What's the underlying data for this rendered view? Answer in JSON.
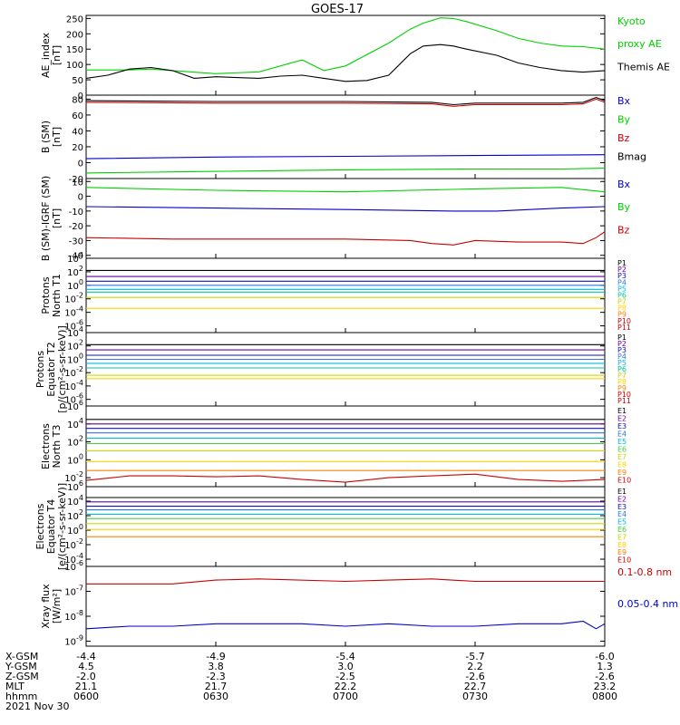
{
  "title": "GOES-17",
  "colors": {
    "black": "#000000",
    "green": "#00d000",
    "blue": "#0000c8",
    "red": "#c80000",
    "c1": "#000000",
    "c2": "#6a00a0",
    "c3": "#1010c8",
    "c4": "#2a7ae0",
    "c5": "#00b8e0",
    "c6": "#00c8a0",
    "c7": "#40d040",
    "c8": "#c8d800",
    "c9": "#ffd000",
    "c10": "#ff8000",
    "c11": "#d00000"
  },
  "panels": [
    {
      "id": "ae",
      "ylabel": [
        "AE_index",
        "[nT]"
      ],
      "scale": "linear",
      "ylim": [
        0,
        260
      ],
      "ticks": [
        "0",
        "50",
        "100",
        "150",
        "200",
        "250"
      ],
      "tick_values": [
        0,
        50,
        100,
        150,
        200,
        250
      ],
      "legend": [
        {
          "text": "Kyoto",
          "color": "green"
        },
        {
          "text": "proxy AE",
          "color": "green"
        },
        {
          "text": "Themis AE",
          "color": "black"
        }
      ]
    },
    {
      "id": "bsm",
      "ylabel": [
        "B (SM)",
        "[nT]"
      ],
      "scale": "linear",
      "ylim": [
        -20,
        85
      ],
      "ticks": [
        "-20",
        "0",
        "20",
        "40",
        "60",
        "80"
      ],
      "tick_values": [
        -20,
        0,
        20,
        40,
        60,
        80
      ],
      "legend": [
        {
          "text": "Bx",
          "color": "blue"
        },
        {
          "text": "By",
          "color": "green"
        },
        {
          "text": "Bz",
          "color": "red"
        },
        {
          "text": "Bmag",
          "color": "black"
        }
      ]
    },
    {
      "id": "bigrf",
      "ylabel": [
        "B (SM)-IGRF (SM)",
        "[nT]"
      ],
      "scale": "linear",
      "ylim": [
        -42,
        12
      ],
      "ticks": [
        "-40",
        "-30",
        "-20",
        "-10",
        "0",
        "10"
      ],
      "tick_values": [
        -40,
        -30,
        -20,
        -10,
        0,
        10
      ],
      "legend": [
        {
          "text": "Bx",
          "color": "blue"
        },
        {
          "text": "By",
          "color": "green"
        },
        {
          "text": "Bz",
          "color": "red"
        }
      ]
    },
    {
      "id": "pn",
      "ylabel": [
        "Protons",
        "North T1"
      ],
      "scale": "log",
      "ylim": [
        -7,
        4
      ],
      "ticks": [
        "10^4",
        "10^2",
        "10^0",
        "10^-2",
        "10^-4",
        "10^-6"
      ],
      "tick_values": [
        4,
        2,
        0,
        -2,
        -4,
        -6
      ],
      "legend": [
        {
          "text": "P1",
          "color": "c1"
        },
        {
          "text": "P2",
          "color": "c2"
        },
        {
          "text": "P3",
          "color": "c3"
        },
        {
          "text": "P4",
          "color": "c4"
        },
        {
          "text": "P5",
          "color": "c5"
        },
        {
          "text": "P6",
          "color": "c6"
        },
        {
          "text": "P7",
          "color": "c8"
        },
        {
          "text": "P8",
          "color": "c9"
        },
        {
          "text": "P9",
          "color": "c10"
        },
        {
          "text": "P10",
          "color": "c11"
        },
        {
          "text": "P11",
          "color": "c11"
        }
      ]
    },
    {
      "id": "pe",
      "ylabel": [
        "Protons",
        "Equator T2",
        "[p/(cm²-s-sr-keV)]"
      ],
      "scale": "log",
      "ylim": [
        -7,
        4
      ],
      "ticks": [
        "10^4",
        "10^2",
        "10^0",
        "10^-2",
        "10^-4",
        "10^-6"
      ],
      "tick_values": [
        4,
        2,
        0,
        -2,
        -4,
        -6
      ],
      "legend": [
        {
          "text": "P1",
          "color": "c1"
        },
        {
          "text": "P2",
          "color": "c2"
        },
        {
          "text": "P3",
          "color": "c3"
        },
        {
          "text": "P4",
          "color": "c4"
        },
        {
          "text": "P5",
          "color": "c5"
        },
        {
          "text": "P6",
          "color": "c6"
        },
        {
          "text": "P7",
          "color": "c8"
        },
        {
          "text": "P8",
          "color": "c9"
        },
        {
          "text": "P9",
          "color": "c10"
        },
        {
          "text": "P10",
          "color": "c11"
        },
        {
          "text": "P11",
          "color": "c11"
        }
      ]
    },
    {
      "id": "en",
      "ylabel": [
        "Electrons",
        "North T3"
      ],
      "scale": "log",
      "ylim": [
        -3,
        6
      ],
      "ticks": [
        "10^6",
        "10^4",
        "10^2",
        "10^0",
        "10^-2"
      ],
      "tick_values": [
        6,
        4,
        2,
        0,
        -2
      ],
      "legend": [
        {
          "text": "E1",
          "color": "c1"
        },
        {
          "text": "E2",
          "color": "c2"
        },
        {
          "text": "E3",
          "color": "c3"
        },
        {
          "text": "E4",
          "color": "c4"
        },
        {
          "text": "E5",
          "color": "c5"
        },
        {
          "text": "E6",
          "color": "c7"
        },
        {
          "text": "E7",
          "color": "c8"
        },
        {
          "text": "E8",
          "color": "c9"
        },
        {
          "text": "E9",
          "color": "c10"
        },
        {
          "text": "E10",
          "color": "c11"
        }
      ]
    },
    {
      "id": "ee",
      "ylabel": [
        "Electrons",
        "Equator T4",
        "[e/(cm²-s-sr-keV)]"
      ],
      "scale": "log",
      "ylim": [
        -5,
        6
      ],
      "ticks": [
        "10^6",
        "10^4",
        "10^2",
        "10^0",
        "10^-2",
        "10^-4"
      ],
      "tick_values": [
        6,
        4,
        2,
        0,
        -2,
        -4
      ],
      "legend": [
        {
          "text": "E1",
          "color": "c1"
        },
        {
          "text": "E2",
          "color": "c2"
        },
        {
          "text": "E3",
          "color": "c3"
        },
        {
          "text": "E4",
          "color": "c4"
        },
        {
          "text": "E5",
          "color": "c5"
        },
        {
          "text": "E6",
          "color": "c7"
        },
        {
          "text": "E7",
          "color": "c8"
        },
        {
          "text": "E8",
          "color": "c9"
        },
        {
          "text": "E9",
          "color": "c10"
        },
        {
          "text": "E10",
          "color": "c11"
        }
      ]
    },
    {
      "id": "xray",
      "ylabel": [
        "Xray flux",
        "[W/m²]"
      ],
      "scale": "log",
      "ylim": [
        -9.2,
        -6
      ],
      "ticks": [
        "10^-6",
        "10^-7",
        "10^-8",
        "10^-9"
      ],
      "tick_values": [
        -6,
        -7,
        -8,
        -9
      ],
      "legend": [
        {
          "text": "0.1-0.8 nm",
          "color": "red"
        },
        {
          "text": "0.05-0.4 nm",
          "color": "blue"
        }
      ]
    }
  ],
  "footer": {
    "rows": [
      {
        "label": "X-GSM",
        "values": [
          "-4.4",
          "-4.9",
          "-5.4",
          "-5.7",
          "-6.0"
        ]
      },
      {
        "label": "Y-GSM",
        "values": [
          "4.5",
          "3.8",
          "3.0",
          "2.2",
          "1.3"
        ]
      },
      {
        "label": "Z-GSM",
        "values": [
          "-2.0",
          "-2.3",
          "-2.5",
          "-2.6",
          "-2.6"
        ]
      },
      {
        "label": "MLT",
        "values": [
          "21.1",
          "21.7",
          "22.2",
          "22.7",
          "23.2"
        ]
      },
      {
        "label": "hhmm",
        "values": [
          "0600",
          "0630",
          "0700",
          "0730",
          "0800"
        ]
      }
    ],
    "date": "2021 Nov 30"
  },
  "chart_data": {
    "type": "line",
    "title": "GOES-17",
    "x_range": [
      "0600",
      "0800"
    ],
    "x_ticks": [
      "0600",
      "0630",
      "0700",
      "0730",
      "0800"
    ],
    "x_minutes": [
      0,
      120
    ],
    "series": {
      "ae": [
        {
          "name": "Kyoto proxy AE",
          "color": "green",
          "x": [
            0,
            5,
            10,
            15,
            20,
            30,
            40,
            50,
            55,
            60,
            70,
            75,
            78,
            82,
            85,
            88,
            95,
            100,
            105,
            110,
            115,
            120
          ],
          "y": [
            82,
            82,
            82,
            85,
            80,
            70,
            76,
            115,
            80,
            95,
            170,
            215,
            235,
            252,
            250,
            240,
            210,
            185,
            170,
            160,
            158,
            150
          ]
        },
        {
          "name": "Themis AE",
          "color": "black",
          "x": [
            0,
            5,
            10,
            15,
            20,
            25,
            30,
            40,
            45,
            50,
            55,
            60,
            65,
            70,
            75,
            78,
            82,
            85,
            88,
            95,
            100,
            105,
            110,
            115,
            120
          ],
          "y": [
            55,
            65,
            85,
            90,
            80,
            55,
            60,
            55,
            62,
            65,
            55,
            45,
            48,
            65,
            135,
            160,
            165,
            160,
            150,
            130,
            105,
            90,
            80,
            75,
            80
          ]
        }
      ],
      "bsm": [
        {
          "name": "Bmag",
          "color": "black",
          "x": [
            0,
            30,
            60,
            80,
            85,
            90,
            100,
            110,
            115,
            118,
            120
          ],
          "y": [
            78,
            77,
            77,
            76,
            73,
            75,
            75,
            75,
            76,
            82,
            78
          ]
        },
        {
          "name": "Bz",
          "color": "red",
          "x": [
            0,
            30,
            60,
            80,
            85,
            90,
            100,
            110,
            115,
            118,
            120
          ],
          "y": [
            76,
            75,
            75,
            74,
            71,
            73,
            73,
            73,
            74,
            80,
            76
          ]
        },
        {
          "name": "Bx",
          "color": "blue",
          "x": [
            0,
            30,
            60,
            90,
            120
          ],
          "y": [
            5,
            7,
            8,
            9,
            10
          ]
        },
        {
          "name": "By",
          "color": "green",
          "x": [
            0,
            30,
            60,
            90,
            110,
            120
          ],
          "y": [
            -13,
            -11,
            -9,
            -8,
            -8,
            -7
          ]
        }
      ],
      "bigrf": [
        {
          "name": "By",
          "color": "green",
          "x": [
            0,
            30,
            60,
            90,
            110,
            120
          ],
          "y": [
            6,
            4,
            3,
            5,
            6,
            3
          ]
        },
        {
          "name": "Bx",
          "color": "blue",
          "x": [
            0,
            30,
            60,
            85,
            95,
            110,
            120
          ],
          "y": [
            -7,
            -8,
            -9,
            -10,
            -10,
            -8,
            -7
          ]
        },
        {
          "name": "Bz",
          "color": "red",
          "x": [
            0,
            20,
            40,
            60,
            75,
            80,
            85,
            90,
            100,
            110,
            115,
            118,
            120
          ],
          "y": [
            -28,
            -29,
            -29,
            -29,
            -30,
            -32,
            -33,
            -30,
            -31,
            -31,
            -32,
            -28,
            -24
          ]
        }
      ],
      "pn": [
        {
          "name": "P1",
          "color": "c1",
          "y": 2.2
        },
        {
          "name": "P2",
          "color": "c2",
          "y": 1.3
        },
        {
          "name": "P3",
          "color": "c3",
          "y": 0.6
        },
        {
          "name": "P4",
          "color": "c4",
          "y": 0.0
        },
        {
          "name": "P5",
          "color": "c5",
          "y": -0.6
        },
        {
          "name": "P6",
          "color": "c6",
          "y": -1.0
        },
        {
          "name": "P7",
          "color": "c8",
          "y": -1.8
        },
        {
          "name": "P8",
          "color": "c9",
          "y": -3.4
        }
      ],
      "pe": [
        {
          "name": "P1",
          "color": "c1",
          "y": 2.2
        },
        {
          "name": "P2",
          "color": "c2",
          "y": 1.4
        },
        {
          "name": "P3",
          "color": "c3",
          "y": 0.6
        },
        {
          "name": "P4",
          "color": "c4",
          "y": 0.0
        },
        {
          "name": "P5",
          "color": "c5",
          "y": -0.6
        },
        {
          "name": "P6",
          "color": "c6",
          "y": -1.3
        },
        {
          "name": "P7",
          "color": "c8",
          "y": -2.4
        },
        {
          "name": "P8",
          "color": "c9",
          "y": -2.9
        }
      ],
      "en": [
        {
          "name": "E1",
          "color": "c1",
          "y": 4.5
        },
        {
          "name": "E2",
          "color": "c2",
          "y": 4.0
        },
        {
          "name": "E3",
          "color": "c3",
          "y": 3.5
        },
        {
          "name": "E4",
          "color": "c4",
          "y": 3.0
        },
        {
          "name": "E5",
          "color": "c5",
          "y": 2.4
        },
        {
          "name": "E6",
          "color": "c7",
          "y": 1.8
        },
        {
          "name": "E7",
          "color": "c8",
          "y": 1.0
        },
        {
          "name": "E8",
          "color": "c9",
          "y": -0.2
        },
        {
          "name": "E9",
          "color": "c10",
          "y": -1.2
        },
        {
          "name": "E10",
          "color": "c11",
          "x": [
            0,
            10,
            20,
            30,
            40,
            50,
            60,
            70,
            80,
            90,
            100,
            110,
            120
          ],
          "y": [
            -2.3,
            -1.8,
            -1.8,
            -1.9,
            -1.8,
            -2.2,
            -2.5,
            -2.0,
            -1.8,
            -1.6,
            -2.2,
            -2.4,
            -2.2
          ]
        }
      ],
      "ee": [
        {
          "name": "E1",
          "color": "c1",
          "y": 4.5
        },
        {
          "name": "E2",
          "color": "c2",
          "y": 3.9
        },
        {
          "name": "E3",
          "color": "c3",
          "y": 3.3
        },
        {
          "name": "E4",
          "color": "c4",
          "y": 2.8
        },
        {
          "name": "E5",
          "color": "c5",
          "y": 2.2
        },
        {
          "name": "E6",
          "color": "c7",
          "y": 1.6
        },
        {
          "name": "E7",
          "color": "c8",
          "y": 0.9
        },
        {
          "name": "E8",
          "color": "c9",
          "y": 0.1
        },
        {
          "name": "E9",
          "color": "c10",
          "y": -0.9
        }
      ],
      "xray": [
        {
          "name": "0.1-0.8 nm",
          "color": "red",
          "x": [
            0,
            20,
            30,
            40,
            60,
            70,
            80,
            90,
            110,
            120
          ],
          "y": [
            -6.7,
            -6.7,
            -6.55,
            -6.5,
            -6.6,
            -6.55,
            -6.5,
            -6.6,
            -6.6,
            -6.6
          ]
        },
        {
          "name": "0.05-0.4 nm",
          "color": "blue",
          "x": [
            0,
            10,
            20,
            30,
            40,
            50,
            60,
            70,
            80,
            90,
            100,
            110,
            115,
            118,
            120
          ],
          "y": [
            -8.5,
            -8.4,
            -8.4,
            -8.3,
            -8.3,
            -8.3,
            -8.4,
            -8.3,
            -8.4,
            -8.4,
            -8.3,
            -8.3,
            -8.2,
            -8.5,
            -8.3
          ]
        }
      ]
    }
  }
}
